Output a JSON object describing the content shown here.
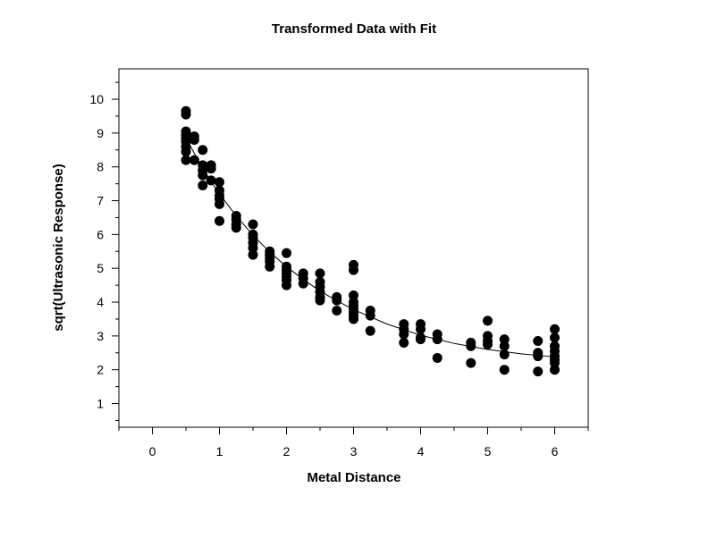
{
  "chart_data": {
    "type": "scatter",
    "title": "Transformed Data with Fit",
    "xlabel": "Metal Distance",
    "ylabel": "sqrt(Ultrasonic Response)",
    "xlim": [
      -0.5,
      6.5
    ],
    "ylim": [
      0.3,
      10.9
    ],
    "x_ticks": [
      0,
      1,
      2,
      3,
      4,
      5,
      6
    ],
    "y_ticks": [
      1,
      2,
      3,
      4,
      5,
      6,
      7,
      8,
      9,
      10
    ],
    "grid": false,
    "legend": "none",
    "marker_color": "#000000",
    "series": [
      {
        "kind": "points",
        "points": [
          [
            0.5,
            9.65
          ],
          [
            0.5,
            9.55
          ],
          [
            0.5,
            9.05
          ],
          [
            0.5,
            8.95
          ],
          [
            0.5,
            8.85
          ],
          [
            0.5,
            8.75
          ],
          [
            0.5,
            8.6
          ],
          [
            0.5,
            8.45
          ],
          [
            0.5,
            8.2
          ],
          [
            0.625,
            8.9
          ],
          [
            0.625,
            8.8
          ],
          [
            0.625,
            8.2
          ],
          [
            0.75,
            8.5
          ],
          [
            0.75,
            8.05
          ],
          [
            0.75,
            7.9
          ],
          [
            0.75,
            7.75
          ],
          [
            0.75,
            7.45
          ],
          [
            0.875,
            8.05
          ],
          [
            0.875,
            7.95
          ],
          [
            0.875,
            7.6
          ],
          [
            1.0,
            7.55
          ],
          [
            1.0,
            7.3
          ],
          [
            1.0,
            7.15
          ],
          [
            1.0,
            7.05
          ],
          [
            1.0,
            6.9
          ],
          [
            1.0,
            6.4
          ],
          [
            1.25,
            6.55
          ],
          [
            1.25,
            6.45
          ],
          [
            1.25,
            6.3
          ],
          [
            1.25,
            6.2
          ],
          [
            1.5,
            6.3
          ],
          [
            1.5,
            6.0
          ],
          [
            1.5,
            5.9
          ],
          [
            1.5,
            5.75
          ],
          [
            1.5,
            5.6
          ],
          [
            1.5,
            5.4
          ],
          [
            1.75,
            5.5
          ],
          [
            1.75,
            5.4
          ],
          [
            1.75,
            5.3
          ],
          [
            1.75,
            5.2
          ],
          [
            1.75,
            5.05
          ],
          [
            2.0,
            5.45
          ],
          [
            2.0,
            5.05
          ],
          [
            2.0,
            4.95
          ],
          [
            2.0,
            4.85
          ],
          [
            2.0,
            4.75
          ],
          [
            2.0,
            4.65
          ],
          [
            2.0,
            4.5
          ],
          [
            2.25,
            4.85
          ],
          [
            2.25,
            4.7
          ],
          [
            2.25,
            4.55
          ],
          [
            2.5,
            4.85
          ],
          [
            2.5,
            4.6
          ],
          [
            2.5,
            4.45
          ],
          [
            2.5,
            4.3
          ],
          [
            2.5,
            4.15
          ],
          [
            2.5,
            4.05
          ],
          [
            2.75,
            4.15
          ],
          [
            2.75,
            4.05
          ],
          [
            2.75,
            3.75
          ],
          [
            3.0,
            5.1
          ],
          [
            3.0,
            4.95
          ],
          [
            3.0,
            4.2
          ],
          [
            3.0,
            4.0
          ],
          [
            3.0,
            3.9
          ],
          [
            3.0,
            3.8
          ],
          [
            3.0,
            3.7
          ],
          [
            3.0,
            3.6
          ],
          [
            3.0,
            3.5
          ],
          [
            3.25,
            3.75
          ],
          [
            3.25,
            3.6
          ],
          [
            3.25,
            3.15
          ],
          [
            3.75,
            3.35
          ],
          [
            3.75,
            3.2
          ],
          [
            3.75,
            3.05
          ],
          [
            3.75,
            2.8
          ],
          [
            4.0,
            3.35
          ],
          [
            4.0,
            3.2
          ],
          [
            4.0,
            2.95
          ],
          [
            4.0,
            2.9
          ],
          [
            4.25,
            3.05
          ],
          [
            4.25,
            2.9
          ],
          [
            4.25,
            2.35
          ],
          [
            4.75,
            2.8
          ],
          [
            4.75,
            2.7
          ],
          [
            4.75,
            2.2
          ],
          [
            5.0,
            3.45
          ],
          [
            5.0,
            3.0
          ],
          [
            5.0,
            2.85
          ],
          [
            5.0,
            2.75
          ],
          [
            5.25,
            2.9
          ],
          [
            5.25,
            2.7
          ],
          [
            5.25,
            2.45
          ],
          [
            5.25,
            2.0
          ],
          [
            5.75,
            2.85
          ],
          [
            5.75,
            2.5
          ],
          [
            5.75,
            2.4
          ],
          [
            5.75,
            1.95
          ],
          [
            6.0,
            3.2
          ],
          [
            6.0,
            2.95
          ],
          [
            6.0,
            2.7
          ],
          [
            6.0,
            2.55
          ],
          [
            6.0,
            2.4
          ],
          [
            6.0,
            2.3
          ],
          [
            6.0,
            2.2
          ],
          [
            6.0,
            2.0
          ]
        ]
      },
      {
        "kind": "fit-line",
        "points": [
          [
            0.5,
            8.85
          ],
          [
            0.75,
            7.95
          ],
          [
            1.0,
            7.2
          ],
          [
            1.25,
            6.55
          ],
          [
            1.5,
            5.98
          ],
          [
            1.75,
            5.48
          ],
          [
            2.0,
            5.05
          ],
          [
            2.25,
            4.67
          ],
          [
            2.5,
            4.33
          ],
          [
            2.75,
            4.04
          ],
          [
            3.0,
            3.78
          ],
          [
            3.5,
            3.35
          ],
          [
            4.0,
            3.02
          ],
          [
            4.5,
            2.78
          ],
          [
            5.0,
            2.6
          ],
          [
            5.5,
            2.47
          ],
          [
            6.0,
            2.38
          ]
        ]
      }
    ]
  }
}
